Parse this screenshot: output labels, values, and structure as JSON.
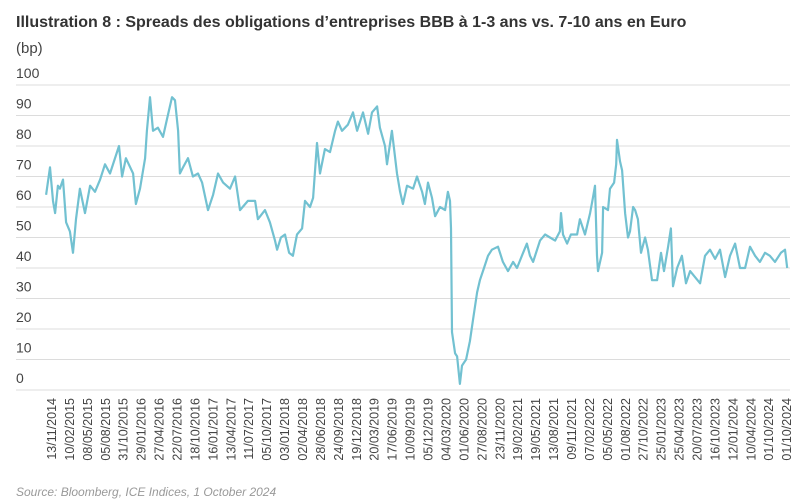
{
  "chart_data": {
    "type": "line",
    "title": "Illustration 8 : Spreads des obligations d’entreprises BBB à 1-3 ans vs. 7-10 ans en Euro",
    "ylabel": "(bp)",
    "xlabel": "",
    "ylim": [
      0,
      100
    ],
    "yticks": [
      "0",
      "10",
      "20",
      "30",
      "40",
      "50",
      "60",
      "70",
      "80",
      "90",
      "100"
    ],
    "xticks": [
      "13/11/2014",
      "10/02/2015",
      "08/05/2015",
      "05/08/2015",
      "31/10/2015",
      "29/01/2016",
      "27/04/2016",
      "22/07/2016",
      "18/10/2016",
      "16/01/2017",
      "13/04/2017",
      "11/07/2017",
      "05/10/2017",
      "03/01/2018",
      "02/04/2018",
      "28/06/2018",
      "24/09/2018",
      "19/12/2018",
      "20/03/2019",
      "17/06/2019",
      "10/09/2019",
      "05/12/2019",
      "04/03/2020",
      "01/06/2020",
      "27/08/2020",
      "23/11/2020",
      "19/02/2021",
      "19/05/2021",
      "13/08/2021",
      "09/11/2021",
      "07/02/2022",
      "05/05/2022",
      "01/08/2022",
      "27/10/2022",
      "25/01/2023",
      "25/04/2023",
      "20/07/2023",
      "16/10/2023",
      "12/01/2024",
      "10/04/2024",
      "01/10/2024",
      "01/10/2024"
    ],
    "grid": true,
    "line_color": "#72c1d1",
    "source": "Source: Bloomberg, ICE Indices, 1 October 2024",
    "x": [
      "2014-10-15",
      "2014-11-03",
      "2014-11-18",
      "2014-11-28",
      "2014-12-12",
      "2014-12-22",
      "2015-01-06",
      "2015-01-21",
      "2015-02-09",
      "2015-02-24",
      "2015-03-11",
      "2015-03-30",
      "2015-04-24",
      "2015-05-19",
      "2015-06-12",
      "2015-07-07",
      "2015-07-31",
      "2015-08-25",
      "2015-10-08",
      "2015-10-23",
      "2015-11-11",
      "2015-12-16",
      "2015-12-30",
      "2016-01-19",
      "2016-02-13",
      "2016-02-22",
      "2016-03-08",
      "2016-03-23",
      "2016-04-16",
      "2016-05-11",
      "2016-05-31",
      "2016-06-24",
      "2016-07-09",
      "2016-07-24",
      "2016-08-02",
      "2016-08-17",
      "2016-09-11",
      "2016-10-05",
      "2016-10-30",
      "2016-11-19",
      "2016-12-18",
      "2017-01-12",
      "2017-02-05",
      "2017-03-02",
      "2017-04-05",
      "2017-04-30",
      "2017-05-24",
      "2017-07-02",
      "2017-08-06",
      "2017-08-20",
      "2017-09-24",
      "2017-10-18",
      "2017-11-12",
      "2017-11-22",
      "2017-12-11",
      "2017-12-31",
      "2018-01-20",
      "2018-02-08",
      "2018-02-28",
      "2018-03-25",
      "2018-04-08",
      "2018-05-03",
      "2018-05-18",
      "2018-06-06",
      "2018-06-21",
      "2018-07-15",
      "2018-08-09",
      "2018-09-03",
      "2018-09-17",
      "2018-10-07",
      "2018-11-05",
      "2018-11-30",
      "2018-12-20",
      "2019-01-18",
      "2019-02-12",
      "2019-03-03",
      "2019-03-28",
      "2019-04-11",
      "2019-05-06",
      "2019-05-16",
      "2019-06-09",
      "2019-07-04",
      "2019-07-19",
      "2019-08-02",
      "2019-08-22",
      "2019-09-21",
      "2019-10-10",
      "2019-11-04",
      "2019-11-18",
      "2019-12-03",
      "2019-12-23",
      "2020-01-07",
      "2020-01-31",
      "2020-02-25",
      "2020-03-10",
      "2020-03-20",
      "2020-03-25",
      "2020-03-30",
      "2020-04-14",
      "2020-04-24",
      "2020-05-08",
      "2020-05-18",
      "2020-06-07",
      "2020-06-26",
      "2020-07-11",
      "2020-07-31",
      "2020-08-14",
      "2020-09-03",
      "2020-09-23",
      "2020-10-12",
      "2020-11-11",
      "2020-12-05",
      "2020-12-30",
      "2021-01-24",
      "2021-02-12",
      "2021-03-14",
      "2021-04-02",
      "2021-04-17",
      "2021-05-02",
      "2021-06-05",
      "2021-06-30",
      "2021-07-24",
      "2021-08-18",
      "2021-09-11",
      "2021-09-16",
      "2021-09-26",
      "2021-10-16",
      "2021-11-04",
      "2021-12-04",
      "2021-12-18",
      "2022-01-12",
      "2022-02-06",
      "2022-02-20",
      "2022-03-02",
      "2022-03-12",
      "2022-03-17",
      "2022-04-06",
      "2022-04-11",
      "2022-05-05",
      "2022-05-15",
      "2022-06-04",
      "2022-06-14",
      "2022-06-18",
      "2022-07-03",
      "2022-07-13",
      "2022-07-28",
      "2022-08-11",
      "2022-08-21",
      "2022-09-05",
      "2022-09-15",
      "2022-09-29",
      "2022-10-14",
      "2022-11-03",
      "2022-11-17",
      "2022-12-07",
      "2023-01-01",
      "2023-01-20",
      "2023-02-04",
      "2023-02-24",
      "2023-03-10",
      "2023-03-20",
      "2023-04-09",
      "2023-05-03",
      "2023-05-23",
      "2023-06-12",
      "2023-07-06",
      "2023-07-31",
      "2023-08-24",
      "2023-09-18",
      "2023-10-13",
      "2023-11-06",
      "2023-12-01",
      "2023-12-25",
      "2024-01-19",
      "2024-02-12",
      "2024-03-08",
      "2024-04-01",
      "2024-04-26",
      "2024-05-20",
      "2024-06-14",
      "2024-07-08",
      "2024-08-02",
      "2024-08-31",
      "2024-09-20",
      "2024-10-01"
    ],
    "values": [
      64,
      73,
      62,
      58,
      67,
      66,
      69,
      55,
      52,
      45,
      56,
      66,
      58,
      67,
      65,
      69,
      74,
      71,
      80,
      70,
      76,
      71,
      61,
      66,
      76,
      85,
      96,
      85,
      86,
      83,
      89,
      96,
      95,
      85,
      71,
      73,
      76,
      70,
      71,
      68,
      59,
      64,
      71,
      68,
      66,
      70,
      59,
      62,
      62,
      56,
      59,
      55,
      49,
      46,
      50,
      51,
      45,
      44,
      51,
      53,
      62,
      60,
      63,
      81,
      71,
      79,
      78,
      85,
      88,
      85,
      87,
      91,
      85,
      91,
      84,
      91,
      93,
      86,
      80,
      74,
      85,
      71,
      65,
      61,
      67,
      66,
      70,
      65,
      61,
      68,
      63,
      57,
      60,
      59,
      65,
      62,
      53,
      19,
      12,
      11,
      2,
      8,
      10,
      16,
      23,
      32,
      36,
      40,
      44,
      46,
      47,
      42,
      39,
      42,
      40,
      45,
      48,
      44,
      42,
      49,
      51,
      50,
      49,
      52,
      58,
      51,
      48,
      51,
      51,
      56,
      51,
      58,
      63,
      67,
      44,
      39,
      45,
      60,
      59,
      66,
      68,
      74,
      82,
      75,
      72,
      58,
      50,
      52,
      60,
      59,
      56,
      45,
      50,
      46,
      36,
      36,
      45,
      39,
      47,
      53,
      34,
      40,
      44,
      35,
      39,
      37,
      35,
      44,
      46,
      43,
      46,
      37,
      44,
      48,
      40,
      40,
      47,
      44,
      42,
      45,
      44,
      42,
      45,
      46,
      40
    ]
  }
}
